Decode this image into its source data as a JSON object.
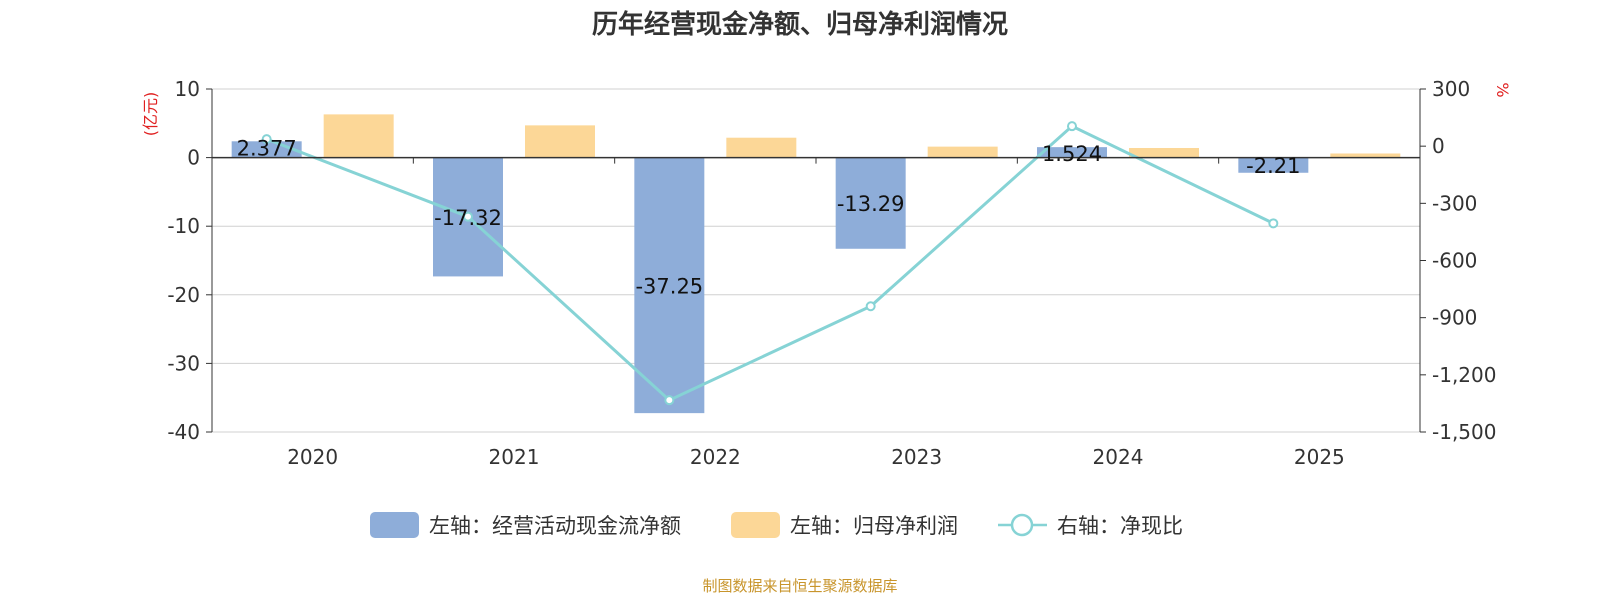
{
  "chart_data": {
    "type": "bar",
    "title": "历年经营现金净额、归母净利润情况",
    "categories": [
      "2020",
      "2021",
      "2022",
      "2023",
      "2024",
      "2025"
    ],
    "left_axis": {
      "unit": "(亿元)",
      "ylim": [
        -40,
        10
      ],
      "ticks": [
        10,
        0,
        -10,
        -20,
        -30,
        -40
      ],
      "tick_labels": [
        "10",
        "0",
        "-10",
        "-20",
        "-30",
        "-40"
      ]
    },
    "right_axis": {
      "unit": "%",
      "ylim": [
        -1500,
        300
      ],
      "ticks": [
        300,
        0,
        -300,
        -600,
        -900,
        -1200,
        -1500
      ],
      "tick_labels": [
        "300",
        "0",
        "-300",
        "-600",
        "-900",
        "-1,200",
        "-1,500"
      ]
    },
    "series": [
      {
        "name": "左轴：经营活动现金流净额",
        "type": "bar",
        "axis": "left",
        "color": "#8eadd9",
        "values": [
          2.377,
          -17.32,
          -37.25,
          -13.29,
          1.524,
          -2.21
        ],
        "labels": [
          "2.377",
          "-17.32",
          "-37.25",
          "-13.29",
          "1.524",
          "-2.21"
        ]
      },
      {
        "name": "左轴：归母净利润",
        "type": "bar",
        "axis": "left",
        "color": "#fcd797",
        "values": [
          6.3,
          4.7,
          2.9,
          1.6,
          1.4,
          0.6
        ]
      },
      {
        "name": "右轴：净现比",
        "type": "line",
        "axis": "right",
        "color": "#86d3d5",
        "values": [
          37,
          -370,
          -1333,
          -840,
          105,
          -405
        ]
      }
    ],
    "grid": true,
    "legend_position": "bottom",
    "source": "制图数据来自恒生聚源数据库"
  }
}
